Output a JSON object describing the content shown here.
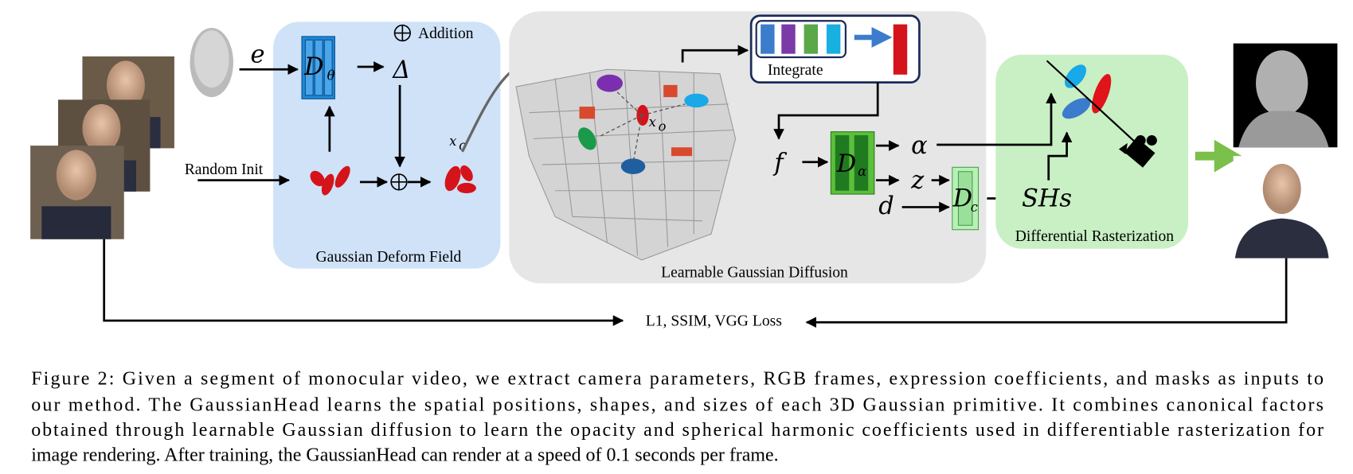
{
  "figure": {
    "deform_field": {
      "title": "Gaussian Deform Field",
      "input": "e",
      "network": {
        "symbol": "D",
        "subscript": "θ"
      },
      "delta": "Δ",
      "legend": "Addition",
      "init": "Random Init",
      "output": {
        "symbol": "x",
        "subscript": "o"
      }
    },
    "diffusion": {
      "title": "Learnable Gaussian Diffusion",
      "integrate": "Integrate",
      "point": {
        "symbol": "x",
        "subscript": "o"
      },
      "feature": "f",
      "network": {
        "symbol": "D",
        "subscript": "α"
      },
      "alpha": "α",
      "z": "z",
      "d": "d",
      "color_network": {
        "symbol": "D",
        "subscript": "c"
      },
      "shs": "SHs"
    },
    "rasterization": {
      "title": "Differential Rasterization"
    },
    "loss": "L1, SSIM, VGG Loss"
  },
  "caption": {
    "lines": [
      "Figure 2: Given a segment of monocular video, we extract camera parameters, RGB frames, expression coefficients, and masks as inputs to",
      "our method. The GaussianHead learns the spatial positions, shapes, and sizes of each 3D Gaussian primitive. It combines canonical factors",
      "obtained through learnable Gaussian diffusion to learn the opacity and spherical harmonic coefficients used in differentiable rasterization for",
      "image rendering. After training, the GaussianHead can render at a speed of 0.1 seconds per frame."
    ]
  }
}
